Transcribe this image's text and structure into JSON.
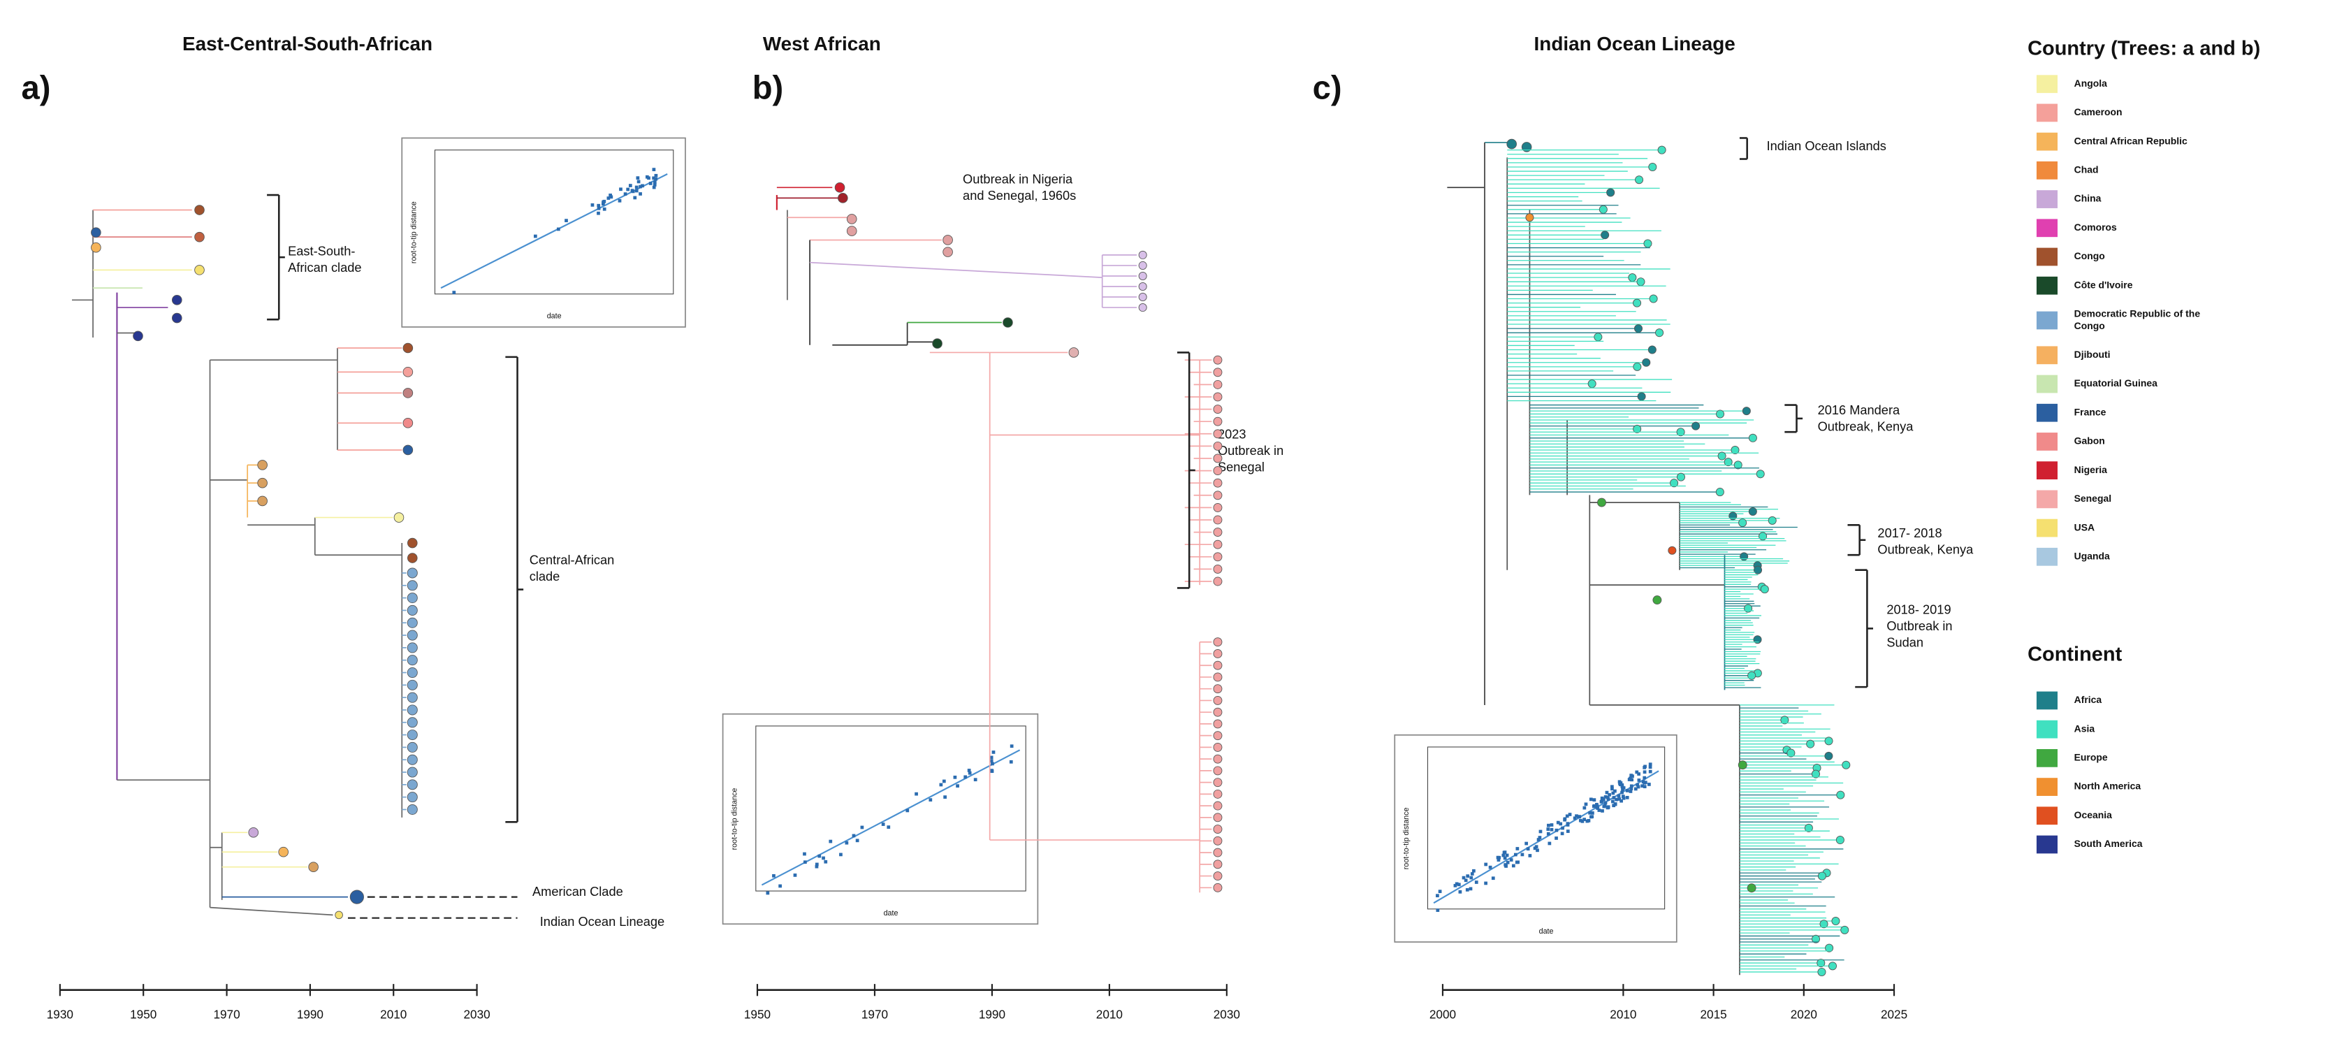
{
  "panels": [
    {
      "label": "a)",
      "title": "East-Central-South-African",
      "annotations": [
        {
          "lines": [
            "East-South-",
            "African clade"
          ]
        },
        {
          "lines": [
            "Central-African",
            "clade"
          ]
        },
        {
          "lines": [
            "American Clade"
          ]
        },
        {
          "lines": [
            "Indian Ocean Lineage"
          ]
        }
      ],
      "axis_ticks": [
        1930,
        1950,
        1970,
        1990,
        2010,
        2030
      ],
      "inset": {
        "x_label": "date",
        "y_label": "root-to-tip distance"
      }
    },
    {
      "label": "b)",
      "title": "West African",
      "annotations": [
        {
          "lines": [
            "Outbreak in Nigeria",
            "and Senegal, 1960s"
          ]
        },
        {
          "lines": [
            "2023",
            "Outbreak in",
            "Senegal"
          ]
        }
      ],
      "axis_ticks": [
        1950,
        1970,
        1990,
        2010,
        2030
      ],
      "inset": {
        "x_label": "date",
        "y_label": "root-to-tip distance"
      }
    },
    {
      "label": "c)",
      "title": "Indian Ocean Lineage",
      "annotations": [
        {
          "lines": [
            "Indian Ocean Islands"
          ]
        },
        {
          "lines": [
            "2016 Mandera",
            "Outbreak, Kenya"
          ]
        },
        {
          "lines": [
            "2017- 2018",
            "Outbreak, Kenya"
          ]
        },
        {
          "lines": [
            "2018- 2019",
            "Outbreak in",
            "Sudan"
          ]
        }
      ],
      "axis_ticks": [
        2000,
        2010,
        2015,
        2020,
        2025
      ],
      "inset": {
        "x_label": "date",
        "y_label": "root-to-tip distance"
      }
    }
  ],
  "legends": [
    {
      "title": "Country (Trees: a and b)",
      "items": [
        {
          "lines": [
            "Angola"
          ],
          "color": "#f5f0a0"
        },
        {
          "lines": [
            "Cameroon"
          ],
          "color": "#f4a09a"
        },
        {
          "lines": [
            "Central African Republic"
          ],
          "color": "#f5b45a"
        },
        {
          "lines": [
            "Chad"
          ],
          "color": "#f08a3c"
        },
        {
          "lines": [
            "China"
          ],
          "color": "#c8a8d8"
        },
        {
          "lines": [
            "Comoros"
          ],
          "color": "#e040b0"
        },
        {
          "lines": [
            "Congo"
          ],
          "color": "#a0522d"
        },
        {
          "lines": [
            "Côte d'Ivoire"
          ],
          "color": "#1a4a2a"
        },
        {
          "lines": [
            "Democratic Republic of the",
            "Congo"
          ],
          "color": "#7ba7d0"
        },
        {
          "lines": [
            "Djibouti"
          ],
          "color": "#f5b060"
        },
        {
          "lines": [
            "Equatorial Guinea"
          ],
          "color": "#c8e6b0"
        },
        {
          "lines": [
            "France"
          ],
          "color": "#2b5fa0"
        },
        {
          "lines": [
            "Gabon"
          ],
          "color": "#f08a8a"
        },
        {
          "lines": [
            "Nigeria"
          ],
          "color": "#d02030"
        },
        {
          "lines": [
            "Senegal"
          ],
          "color": "#f4a8a8"
        },
        {
          "lines": [
            "USA"
          ],
          "color": "#f5e070"
        },
        {
          "lines": [
            "Uganda"
          ],
          "color": "#a8c8e0"
        }
      ]
    },
    {
      "title": "Continent",
      "items": [
        {
          "lines": [
            "Africa"
          ],
          "color": "#1f7f8a"
        },
        {
          "lines": [
            "Asia"
          ],
          "color": "#40e0c0"
        },
        {
          "lines": [
            "Europe"
          ],
          "color": "#40a840"
        },
        {
          "lines": [
            "North America"
          ],
          "color": "#f09030"
        },
        {
          "lines": [
            "Oceania"
          ],
          "color": "#e05020"
        },
        {
          "lines": [
            "South America"
          ],
          "color": "#283890"
        }
      ]
    }
  ]
}
